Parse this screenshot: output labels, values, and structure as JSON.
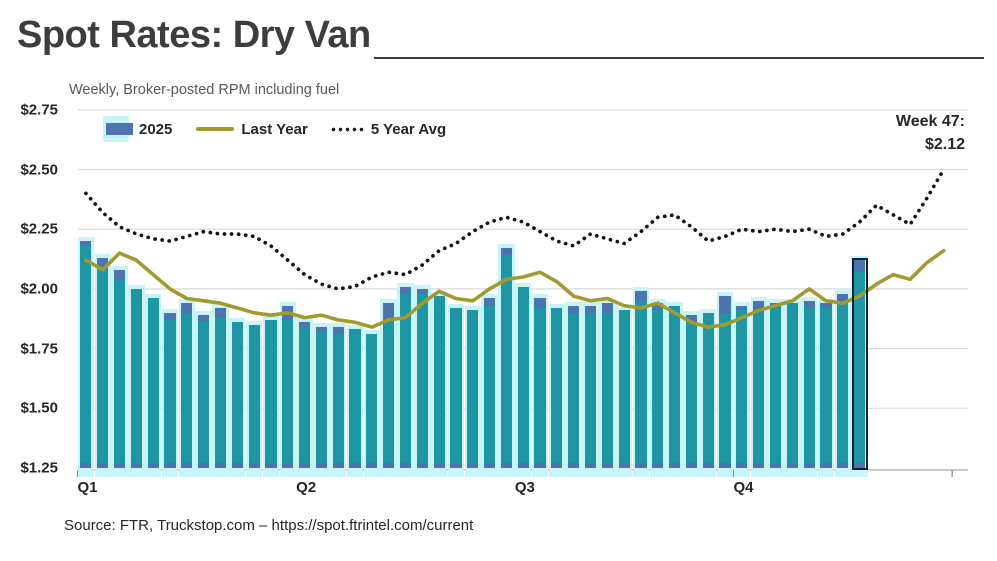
{
  "title": "Spot Rates: Dry Van",
  "subtitle": "Weekly, Broker-posted RPM including fuel",
  "legend": {
    "bars_label": "2025",
    "line_label": "Last Year",
    "dotted_label": "5 Year Avg"
  },
  "annotation": {
    "line1": "Week 47:",
    "line2": "$2.12"
  },
  "source": "Source: FTR, Truckstop.com – https://spot.ftrintel.com/current",
  "colors": {
    "bar_teal": "#1e96a4",
    "bar_cap_blue": "#4d74ae",
    "bar_glow_cyan": "#c9f4f7",
    "last_year_line": "#a29a2f",
    "five_year_avg_line": "#161616",
    "highlight_outline": "#0e2230",
    "gridline": "#d9d9d9",
    "axis_line": "#a6a6a6",
    "title_text": "#3d3d3d",
    "subtitle_text": "#595959",
    "axis_text": "#262626"
  },
  "chart_data": {
    "type": "bar",
    "title": "Spot Rates: Dry Van",
    "subtitle": "Weekly, Broker-posted RPM including fuel",
    "ylabel": "",
    "xlabel": "",
    "ylim": [
      1.25,
      2.75
    ],
    "y_tick_labels": [
      "$2.75",
      "$2.50",
      "$2.25",
      "$2.00",
      "$1.75",
      "$1.50",
      "$1.25"
    ],
    "y_tick_values": [
      2.75,
      2.5,
      2.25,
      2.0,
      1.75,
      1.5,
      1.25
    ],
    "x_tick_labels": [
      "Q1",
      "Q2",
      "Q3",
      "Q4"
    ],
    "weeks_per_quarter": 13,
    "grid": "horizontal",
    "legend_position": "top-left-inside",
    "highlight": {
      "week": 47,
      "label": "Week 47:",
      "value": "$2.12"
    },
    "series": [
      {
        "name": "2025",
        "type": "bar",
        "values": [
          2.2,
          2.13,
          2.08,
          2.0,
          1.96,
          1.9,
          1.94,
          1.89,
          1.92,
          1.86,
          1.85,
          1.87,
          1.93,
          1.86,
          1.84,
          1.84,
          1.83,
          1.81,
          1.94,
          2.01,
          2.0,
          1.97,
          1.92,
          1.91,
          1.96,
          2.17,
          2.01,
          1.96,
          1.92,
          1.93,
          1.93,
          1.94,
          1.91,
          1.99,
          1.94,
          1.93,
          1.89,
          1.9,
          1.97,
          1.93,
          1.95,
          1.94,
          1.94,
          1.95,
          1.94,
          1.98,
          2.12
        ],
        "cap_sizes": [
          0.02,
          0.05,
          0.04,
          0,
          0,
          0.03,
          0.04,
          0.03,
          0.04,
          0,
          0,
          0,
          0.06,
          0.02,
          0.02,
          0.03,
          0,
          0,
          0.08,
          0.03,
          0.02,
          0,
          0,
          0,
          0.03,
          0.03,
          0,
          0.04,
          0,
          0.03,
          0.03,
          0.04,
          0,
          0.04,
          0.03,
          0,
          0.03,
          0,
          0.07,
          0.02,
          0.04,
          0.02,
          0,
          0.03,
          0.02,
          0.04,
          0.05
        ]
      },
      {
        "name": "Last Year",
        "type": "line",
        "values": [
          2.12,
          2.08,
          2.15,
          2.12,
          2.06,
          2.0,
          1.96,
          1.95,
          1.94,
          1.92,
          1.9,
          1.89,
          1.9,
          1.88,
          1.89,
          1.87,
          1.86,
          1.84,
          1.87,
          1.88,
          1.94,
          1.99,
          1.96,
          1.95,
          2.0,
          2.04,
          2.05,
          2.07,
          2.03,
          1.97,
          1.95,
          1.96,
          1.93,
          1.92,
          1.94,
          1.9,
          1.86,
          1.84,
          1.85,
          1.88,
          1.91,
          1.93,
          1.95,
          2.0,
          1.95,
          1.94,
          1.97,
          2.02,
          2.06,
          2.04,
          2.11,
          2.16
        ]
      },
      {
        "name": "5 Year Avg",
        "type": "dotted-line",
        "values": [
          2.4,
          2.32,
          2.26,
          2.23,
          2.21,
          2.2,
          2.22,
          2.24,
          2.23,
          2.23,
          2.22,
          2.18,
          2.12,
          2.06,
          2.02,
          2.0,
          2.01,
          2.05,
          2.07,
          2.06,
          2.1,
          2.16,
          2.19,
          2.24,
          2.28,
          2.3,
          2.28,
          2.24,
          2.2,
          2.18,
          2.23,
          2.21,
          2.19,
          2.24,
          2.3,
          2.31,
          2.26,
          2.2,
          2.22,
          2.25,
          2.24,
          2.25,
          2.24,
          2.25,
          2.22,
          2.23,
          2.28,
          2.35,
          2.31,
          2.27,
          2.38,
          2.5
        ]
      }
    ]
  }
}
